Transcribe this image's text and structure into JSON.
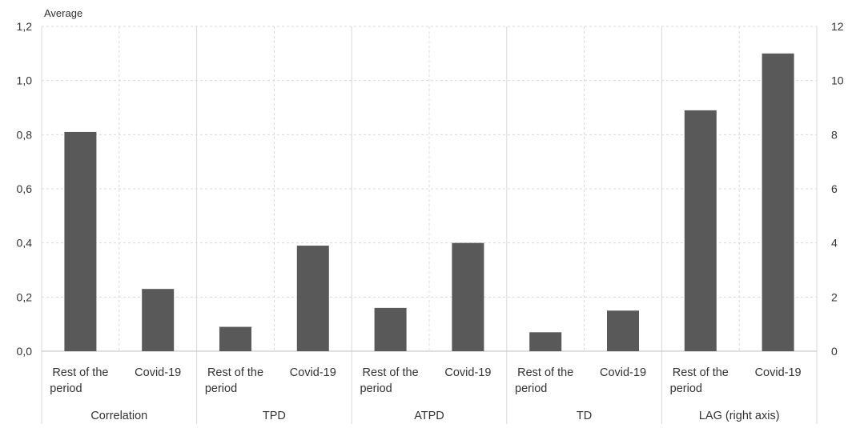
{
  "chart_data": {
    "type": "bar",
    "ylabel": "Average",
    "left_axis": {
      "ylim": [
        0,
        1.2
      ],
      "ticks": [
        "0,0",
        "0,2",
        "0,4",
        "0,6",
        "0,8",
        "1,0",
        "1,2"
      ]
    },
    "right_axis": {
      "ylim": [
        0,
        12
      ],
      "ticks": [
        "0",
        "2",
        "4",
        "6",
        "8",
        "10",
        "12"
      ]
    },
    "grid": true,
    "bar_color": "#595959",
    "groups": [
      {
        "name": "Correlation",
        "axis": "left",
        "bars": [
          {
            "label": "Rest of the period",
            "value": 0.81
          },
          {
            "label": "Covid-19",
            "value": 0.23
          }
        ]
      },
      {
        "name": "TPD",
        "axis": "left",
        "bars": [
          {
            "label": "Rest of the period",
            "value": 0.09
          },
          {
            "label": "Covid-19",
            "value": 0.39
          }
        ]
      },
      {
        "name": "ATPD",
        "axis": "left",
        "bars": [
          {
            "label": "Rest of the period",
            "value": 0.16
          },
          {
            "label": "Covid-19",
            "value": 0.4
          }
        ]
      },
      {
        "name": "TD",
        "axis": "left",
        "bars": [
          {
            "label": "Rest of the period",
            "value": 0.07
          },
          {
            "label": "Covid-19",
            "value": 0.15
          }
        ]
      },
      {
        "name": "LAG (right axis)",
        "axis": "right",
        "bars": [
          {
            "label": "Rest of the period",
            "value": 8.9
          },
          {
            "label": "Covid-19",
            "value": 11.0
          }
        ]
      }
    ]
  }
}
